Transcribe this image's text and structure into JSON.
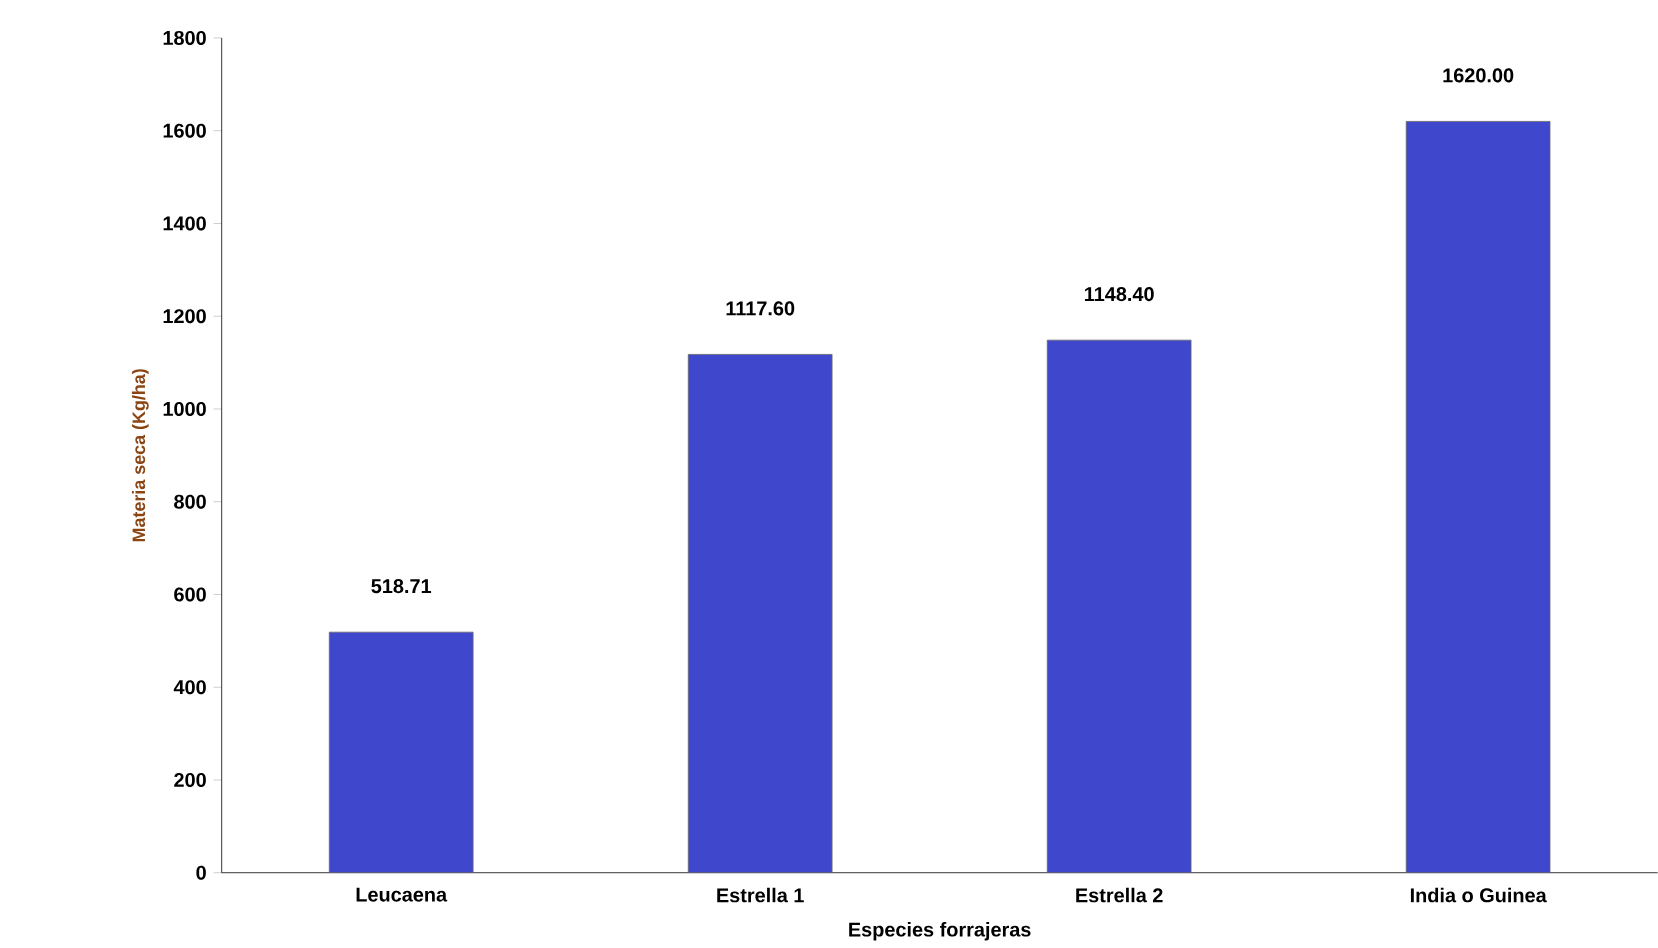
{
  "chart_data": {
    "type": "bar",
    "xlabel": "Especies forrajeras",
    "ylabel": "Materia seca (Kg/ha)",
    "categories": [
      "Leucaena",
      "Estrella 1",
      "Estrella 2",
      "India o Guinea"
    ],
    "values": [
      518.71,
      1117.6,
      1148.4,
      1620
    ],
    "value_labels": [
      "518.71",
      "1117.60",
      "1148.40",
      "1620.00"
    ],
    "color": "#3f48cc",
    "ylim": [
      0,
      1800
    ],
    "yticks": [
      0,
      200,
      400,
      600,
      800,
      1000,
      1200,
      1400,
      1600,
      1800
    ]
  }
}
